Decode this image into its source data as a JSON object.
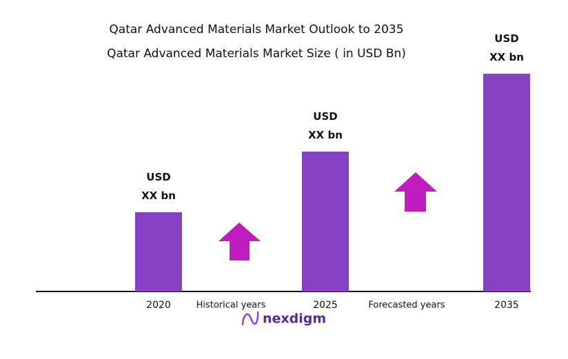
{
  "chart_data": {
    "type": "bar",
    "title": "Qatar Advanced Materials Market Outlook to 2035",
    "subtitle": "Qatar Advanced Materials Market Size  ( in USD Bn)",
    "categories": [
      "2020",
      "2025",
      "2035"
    ],
    "values": [
      115,
      203,
      316
    ],
    "value_labels": [
      "USD\nXX bn",
      "USD\nXX bn",
      "USD\nXX bn"
    ],
    "color": "#8441c2",
    "ylim": [
      0,
      350
    ],
    "annotations": [
      "Historical years",
      "Forecasted years"
    ],
    "logo": "nexdigm"
  }
}
